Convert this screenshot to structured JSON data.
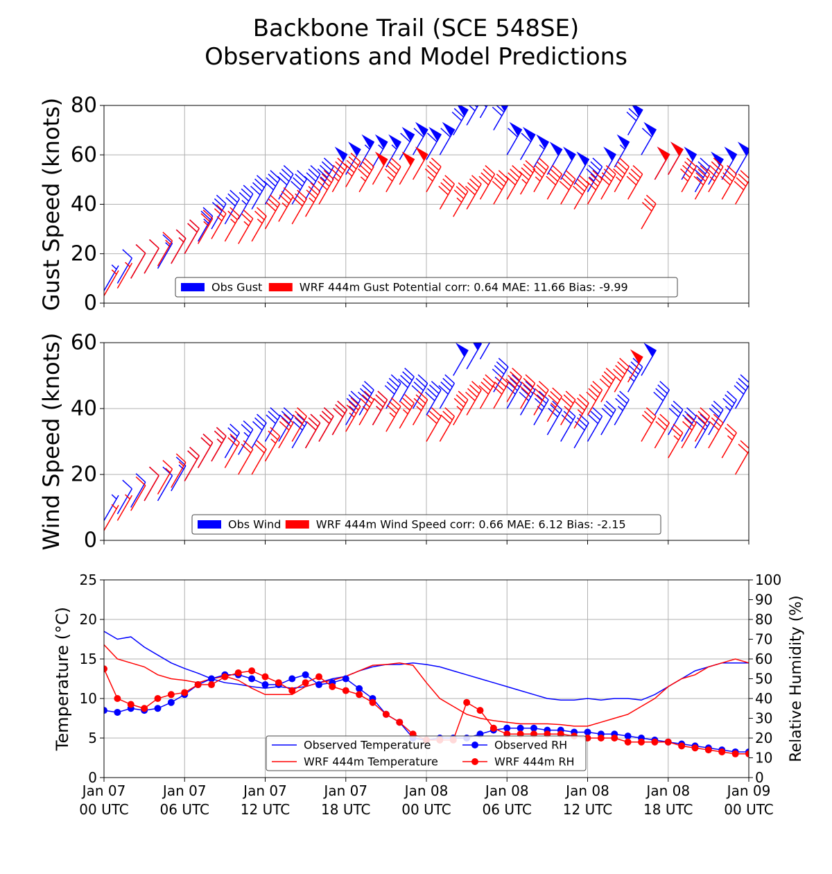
{
  "title": "Backbone Trail (SCE 548SE)\nObservations and Model Predictions",
  "chart_data": [
    {
      "type": "barb",
      "ylabel": "Gust Speed (knots)",
      "xlim": [
        0,
        48
      ],
      "xticks": [
        0,
        6,
        12,
        18,
        24,
        30,
        36,
        42,
        48
      ],
      "ylim": [
        0,
        80
      ],
      "yticks": [
        0,
        20,
        40,
        60,
        80
      ],
      "grid": true,
      "legend": "lower center",
      "x": [
        0,
        1,
        2,
        3,
        4,
        5,
        6,
        7,
        8,
        9,
        10,
        11,
        12,
        13,
        14,
        15,
        16,
        17,
        18,
        19,
        20,
        21,
        22,
        23,
        24,
        25,
        26,
        27,
        28,
        29,
        30,
        31,
        32,
        33,
        34,
        35,
        36,
        37,
        38,
        39,
        40,
        41,
        42,
        43,
        44,
        45,
        46,
        47,
        48
      ],
      "series": [
        {
          "name": "Obs Gust",
          "color": "#0000ff",
          "values": [
            5,
            8,
            10,
            12,
            14,
            16,
            20,
            25,
            30,
            32,
            34,
            38,
            40,
            42,
            40,
            42,
            45,
            50,
            52,
            55,
            55,
            55,
            58,
            60,
            58,
            60,
            68,
            72,
            75,
            70,
            60,
            58,
            55,
            52,
            50,
            48,
            45,
            50,
            55,
            68,
            60,
            50,
            52,
            50,
            45,
            48,
            50,
            52,
            50
          ]
        },
        {
          "name": "WRF 444m Gust Potential corr: 0.64 MAE: 11.66 Bias: -9.99",
          "color": "#ff0000",
          "values": [
            3,
            6,
            10,
            12,
            15,
            16,
            20,
            24,
            26,
            25,
            24,
            25,
            30,
            33,
            32,
            35,
            40,
            45,
            47,
            45,
            48,
            45,
            48,
            50,
            45,
            38,
            35,
            38,
            42,
            40,
            42,
            44,
            45,
            42,
            40,
            38,
            40,
            42,
            45,
            42,
            30,
            50,
            52,
            45,
            42,
            45,
            42,
            40,
            35
          ]
        }
      ]
    },
    {
      "type": "barb",
      "ylabel": "Wind Speed (knots)",
      "xlim": [
        0,
        48
      ],
      "xticks": [
        0,
        6,
        12,
        18,
        24,
        30,
        36,
        42,
        48
      ],
      "ylim": [
        0,
        60
      ],
      "yticks": [
        0,
        20,
        40,
        60
      ],
      "grid": true,
      "legend": "lower center",
      "x": [
        0,
        1,
        2,
        3,
        4,
        5,
        6,
        7,
        8,
        9,
        10,
        11,
        12,
        13,
        14,
        15,
        16,
        17,
        18,
        19,
        20,
        21,
        22,
        23,
        24,
        25,
        26,
        27,
        28,
        29,
        30,
        31,
        32,
        33,
        34,
        35,
        36,
        37,
        38,
        39,
        40,
        41,
        42,
        43,
        44,
        45,
        46,
        47,
        48
      ],
      "series": [
        {
          "name": "Obs Wind",
          "color": "#0000ff",
          "values": [
            6,
            8,
            10,
            12,
            12,
            15,
            18,
            22,
            24,
            25,
            26,
            28,
            30,
            30,
            28,
            28,
            30,
            32,
            35,
            38,
            35,
            40,
            42,
            40,
            38,
            40,
            50,
            52,
            55,
            45,
            40,
            38,
            35,
            32,
            30,
            28,
            30,
            32,
            35,
            45,
            50,
            38,
            32,
            30,
            28,
            32,
            35,
            40,
            35
          ]
        },
        {
          "name": "WRF 444m Wind Speed corr: 0.66 MAE: 6.12 Bias: -2.15",
          "color": "#ff0000",
          "values": [
            3,
            6,
            9,
            12,
            14,
            16,
            18,
            22,
            24,
            22,
            20,
            20,
            24,
            28,
            30,
            28,
            30,
            32,
            33,
            35,
            35,
            33,
            34,
            35,
            30,
            30,
            35,
            38,
            40,
            40,
            42,
            40,
            38,
            36,
            35,
            34,
            38,
            42,
            45,
            48,
            30,
            28,
            25,
            28,
            30,
            28,
            25,
            20,
            15
          ]
        }
      ]
    },
    {
      "type": "line",
      "ylabel": "Temperature (°C)",
      "y2label": "Relative Humidity (%)",
      "xlim": [
        0,
        48
      ],
      "xticks": [
        {
          "value": 0,
          "label": "Jan 07\n00 UTC"
        },
        {
          "value": 6,
          "label": "Jan 07\n06 UTC"
        },
        {
          "value": 12,
          "label": "Jan 07\n12 UTC"
        },
        {
          "value": 18,
          "label": "Jan 07\n18 UTC"
        },
        {
          "value": 24,
          "label": "Jan 08\n00 UTC"
        },
        {
          "value": 30,
          "label": "Jan 08\n06 UTC"
        },
        {
          "value": 36,
          "label": "Jan 08\n12 UTC"
        },
        {
          "value": 42,
          "label": "Jan 08\n18 UTC"
        },
        {
          "value": 48,
          "label": "Jan 09\n00 UTC"
        }
      ],
      "ylim": [
        0,
        25
      ],
      "yticks": [
        0,
        5,
        10,
        15,
        20,
        25
      ],
      "y2lim": [
        0,
        100
      ],
      "y2ticks": [
        0,
        10,
        20,
        30,
        40,
        50,
        60,
        70,
        80,
        90,
        100
      ],
      "grid": true,
      "legend": "lower center",
      "x": [
        0,
        1,
        2,
        3,
        4,
        5,
        6,
        7,
        8,
        9,
        10,
        11,
        12,
        13,
        14,
        15,
        16,
        17,
        18,
        19,
        20,
        21,
        22,
        23,
        24,
        25,
        26,
        27,
        28,
        29,
        30,
        31,
        32,
        33,
        34,
        35,
        36,
        37,
        38,
        39,
        40,
        41,
        42,
        43,
        44,
        45,
        46,
        47,
        48
      ],
      "series": [
        {
          "name": "Observed Temperature",
          "color": "#0000ff",
          "values": [
            18.5,
            17.5,
            17.8,
            16.5,
            15.5,
            14.5,
            13.8,
            13.2,
            12.5,
            12,
            11.8,
            11.5,
            11.3,
            11.5,
            11.3,
            11.5,
            12,
            12.5,
            12.8,
            13.5,
            14,
            14.3,
            14.3,
            14.5,
            14.3,
            14,
            13.5,
            13,
            12.5,
            12,
            11.5,
            11,
            10.5,
            10,
            9.8,
            9.8,
            10,
            9.8,
            10,
            10,
            9.8,
            10.5,
            11.5,
            12.5,
            13.5,
            14,
            14.5,
            14.5,
            14.5
          ]
        },
        {
          "name": "WRF 444m Temperature",
          "color": "#ff0000",
          "values": [
            16.8,
            15,
            14.5,
            14,
            13,
            12.5,
            12.3,
            12,
            12.5,
            12.8,
            12.3,
            11.3,
            10.5,
            10.5,
            10.5,
            11.5,
            12,
            12.3,
            12.8,
            13.5,
            14.2,
            14.3,
            14.5,
            14.2,
            12,
            10,
            9,
            8,
            7.5,
            7.2,
            7,
            6.8,
            6.8,
            6.8,
            6.7,
            6.5,
            6.5,
            7,
            7.5,
            8,
            9,
            10,
            11.5,
            12.5,
            13,
            14,
            14.5,
            15,
            14.5
          ]
        },
        {
          "name": "Observed RH",
          "color": "#0000ff",
          "axis": "y2",
          "marker": "o",
          "values": [
            34,
            33,
            35,
            34,
            35,
            38,
            42,
            47,
            50,
            52,
            52,
            50,
            47,
            47,
            50,
            52,
            47,
            48,
            50,
            45,
            40,
            32,
            28,
            20,
            19,
            20,
            20,
            20,
            22,
            24,
            25,
            25,
            25,
            24,
            24,
            23,
            23,
            22,
            22,
            21,
            20,
            19,
            18,
            17,
            16,
            15,
            14,
            13,
            13
          ]
        },
        {
          "name": "WRF 444m RH",
          "color": "#ff0000",
          "axis": "y2",
          "marker": "o",
          "values": [
            55,
            40,
            37,
            35,
            40,
            42,
            43,
            47,
            47,
            51,
            53,
            54,
            51,
            48,
            44,
            48,
            51,
            46,
            44,
            42,
            38,
            32,
            28,
            22,
            19,
            19,
            19,
            38,
            34,
            25,
            22,
            22,
            22,
            22,
            22,
            21,
            20,
            20,
            20,
            18,
            18,
            18,
            18,
            16,
            15,
            14,
            13,
            12,
            12
          ]
        }
      ]
    }
  ]
}
